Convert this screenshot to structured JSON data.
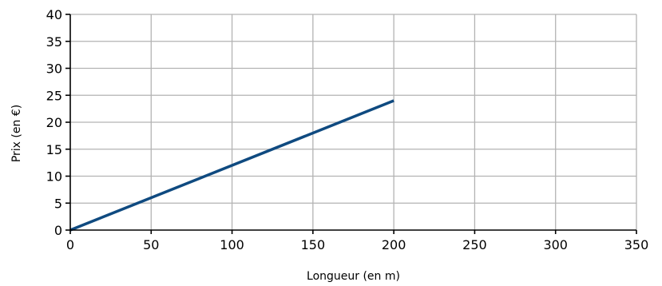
{
  "chart_data": {
    "type": "line",
    "title": "",
    "xlabel": "Longueur (en m)",
    "ylabel": "Prix (en €)",
    "xlim": [
      0,
      350
    ],
    "ylim": [
      0,
      40
    ],
    "xticks": [
      0,
      50,
      100,
      150,
      200,
      250,
      300,
      350
    ],
    "yticks": [
      0,
      5,
      10,
      15,
      20,
      25,
      30,
      35,
      40
    ],
    "grid": true,
    "series": [
      {
        "color": "#0f4a80",
        "x": [
          0,
          200
        ],
        "y": [
          0,
          24
        ]
      }
    ]
  }
}
